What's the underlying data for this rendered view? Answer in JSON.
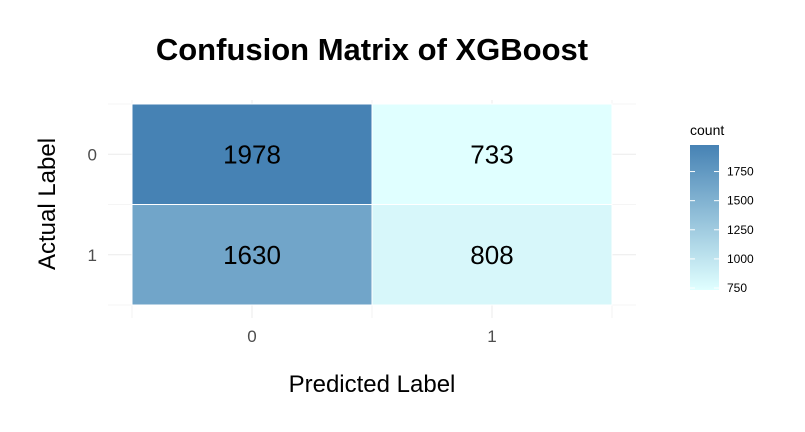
{
  "chart_data": {
    "type": "heatmap",
    "title": "Confusion Matrix of XGBoost",
    "xlabel": "Predicted Label",
    "ylabel": "Actual Label",
    "x_categories": [
      "0",
      "1"
    ],
    "y_categories": [
      "0",
      "1"
    ],
    "cells": [
      {
        "actual": "0",
        "predicted": "0",
        "count": 1978
      },
      {
        "actual": "0",
        "predicted": "1",
        "count": 733
      },
      {
        "actual": "1",
        "predicted": "0",
        "count": 1630
      },
      {
        "actual": "1",
        "predicted": "1",
        "count": 808
      }
    ],
    "legend": {
      "title": "count",
      "ticks": [
        750,
        1000,
        1250,
        1500,
        1750
      ],
      "range": [
        733,
        1978
      ],
      "low_color": "#e0ffff",
      "high_color": "#4682b4",
      "placement": "right"
    },
    "grid": true
  }
}
